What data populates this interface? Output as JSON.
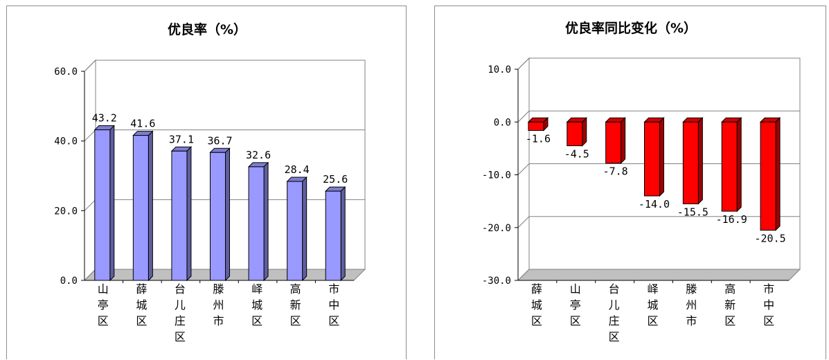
{
  "chart_data": [
    {
      "type": "bar",
      "title": "优良率（%）",
      "categories": [
        "山亭区",
        "薛城区",
        "台儿庄区",
        "滕州市",
        "峄城区",
        "高新区",
        "市中区"
      ],
      "values": [
        43.2,
        41.6,
        37.1,
        36.7,
        32.6,
        28.4,
        25.6
      ],
      "value_labels": [
        "43.2",
        "41.6",
        "37.1",
        "36.7",
        "32.6",
        "28.4",
        "25.6"
      ],
      "ylim": [
        0,
        60
      ],
      "yticks": [
        0,
        20,
        40,
        60
      ],
      "ytick_labels": [
        "0.0",
        "20.0",
        "40.0",
        "60.0"
      ],
      "xlabel": "",
      "ylabel": "",
      "grid": true,
      "bar_color": "#9999ff",
      "style": "3d"
    },
    {
      "type": "bar",
      "title": "优良率同比变化（%）",
      "categories": [
        "薛城区",
        "山亭区",
        "台儿庄区",
        "峄城区",
        "滕州市",
        "高新区",
        "市中区"
      ],
      "values": [
        -1.6,
        -4.5,
        -7.8,
        -14.0,
        -15.5,
        -16.9,
        -20.5
      ],
      "value_labels": [
        "-1.6",
        "-4.5",
        "-7.8",
        "-14.0",
        "-15.5",
        "-16.9",
        "-20.5"
      ],
      "ylim": [
        -30,
        10
      ],
      "yticks": [
        -30,
        -20,
        -10,
        0,
        10
      ],
      "ytick_labels": [
        "-30.0",
        "-20.0",
        "-10.0",
        "0.0",
        "10.0"
      ],
      "xlabel": "",
      "ylabel": "",
      "grid": true,
      "bar_color": "#ff0000",
      "style": "3d"
    }
  ]
}
